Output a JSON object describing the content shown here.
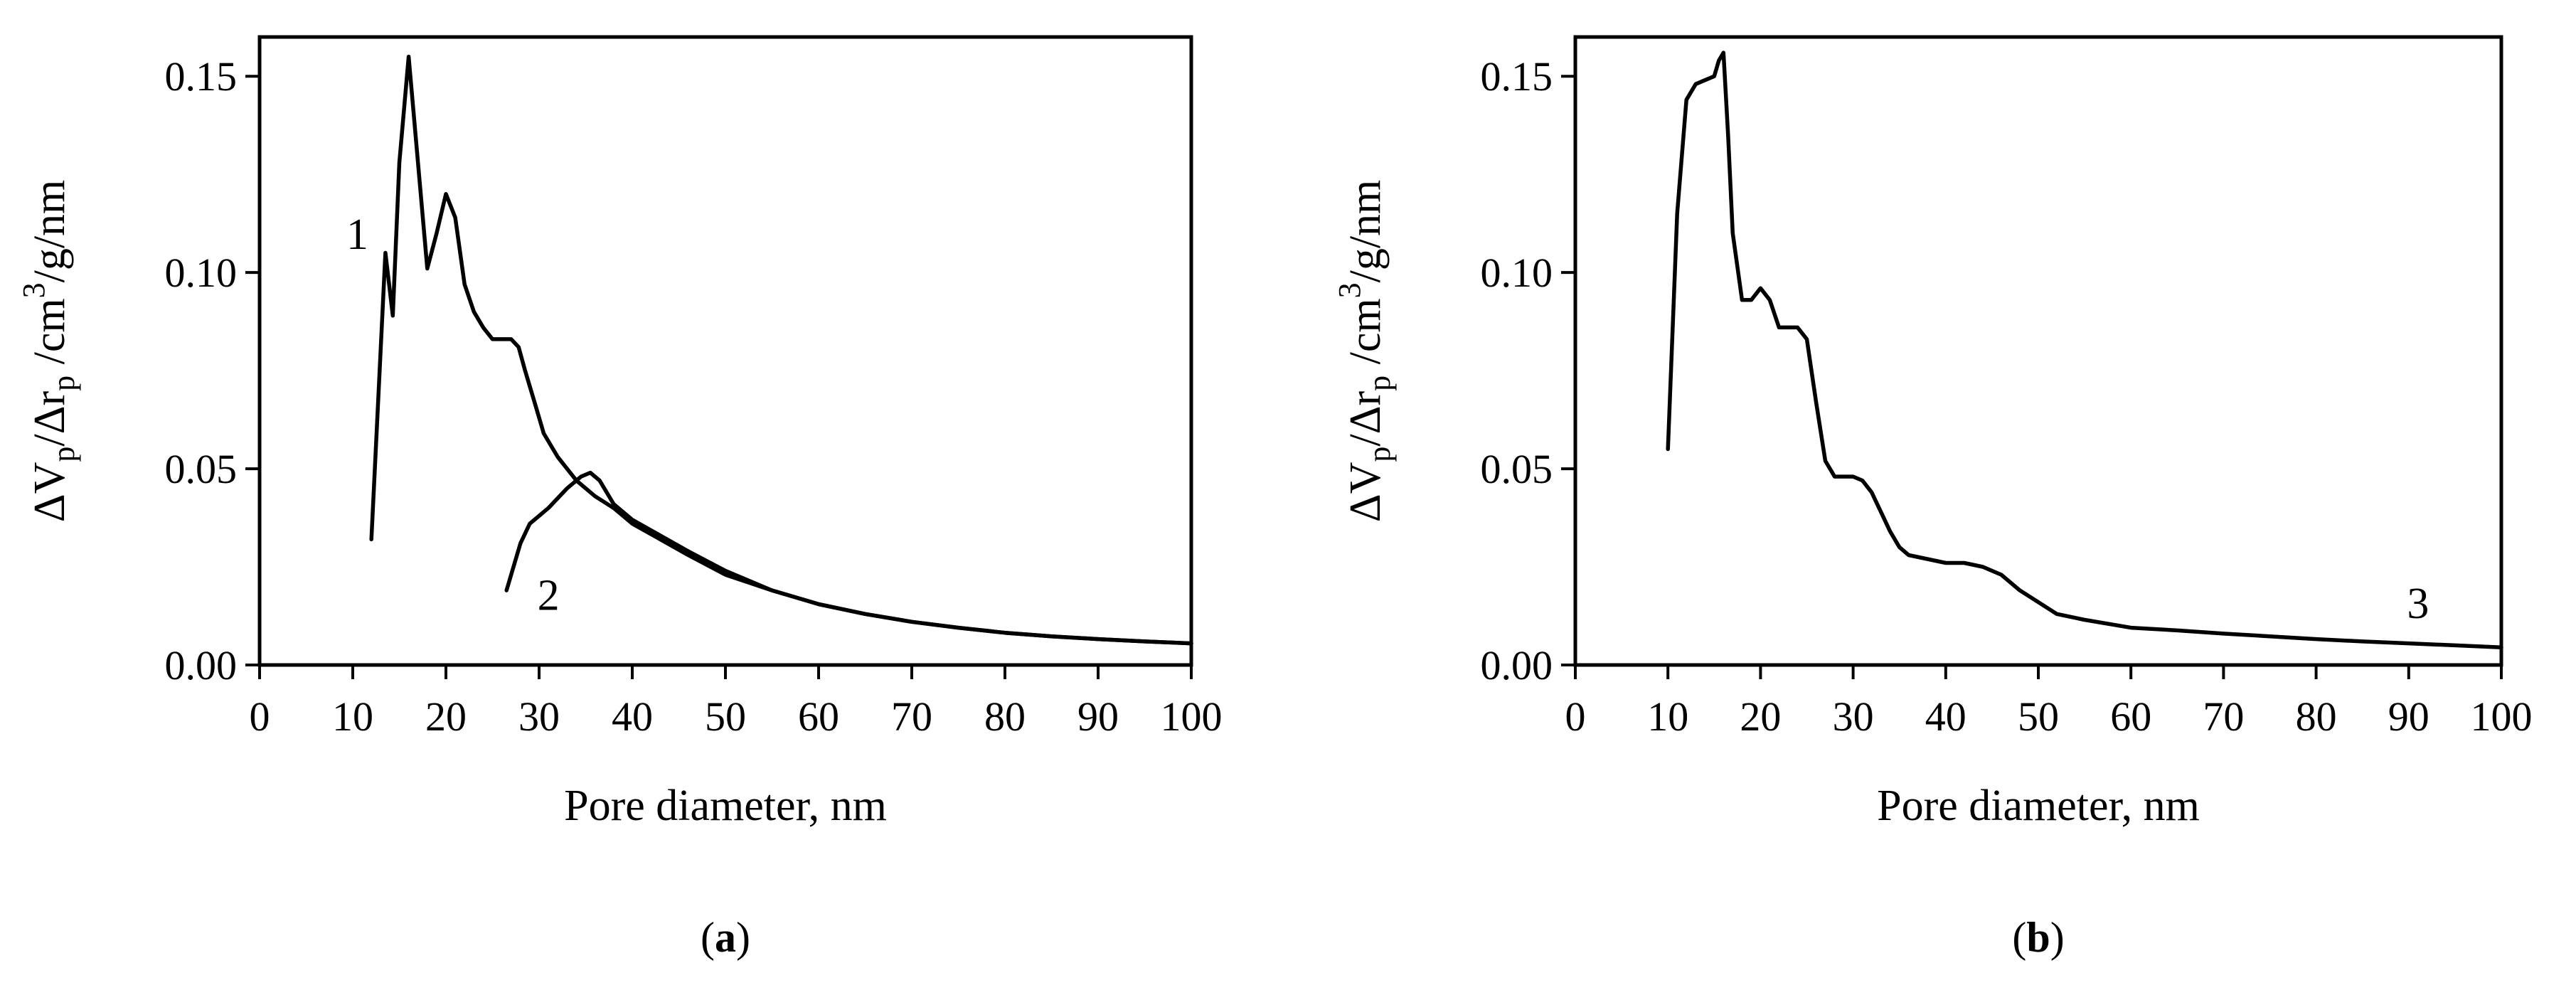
{
  "colors": {
    "line": "#000000",
    "axes": "#000000",
    "background": "#ffffff"
  },
  "chart_data": [
    {
      "type": "line",
      "panel": "(a)",
      "panel_letter": "a",
      "xlabel": "Pore diameter, nm",
      "ylabel": "ΔVp/Δrp /cm3/g/nm",
      "xlim": [
        0,
        100
      ],
      "ylim": [
        0,
        0.16
      ],
      "x_ticks": [
        "0",
        "10",
        "20",
        "30",
        "40",
        "50",
        "60",
        "70",
        "80",
        "90",
        "100"
      ],
      "y_ticks": [
        "0.00",
        "0.05",
        "0.10",
        "0.15"
      ],
      "grid": false,
      "series": [
        {
          "name": "1",
          "x": [
            12.0,
            13.5,
            14.3,
            15.0,
            16.0,
            17.0,
            18.0,
            19.0,
            20.0,
            21.0,
            22.0,
            23.0,
            24.0,
            25.0,
            26.0,
            27.0,
            27.8,
            28.5,
            29.5,
            30.5,
            32.0,
            34.0,
            36.0,
            38.0,
            40.0,
            43.0,
            46.0,
            50.0,
            55.0,
            60.0,
            65.0,
            70.0,
            75.0,
            80.0,
            85.0,
            90.0,
            95.0,
            100.0
          ],
          "y": [
            0.032,
            0.105,
            0.089,
            0.128,
            0.155,
            0.128,
            0.101,
            0.11,
            0.12,
            0.114,
            0.097,
            0.09,
            0.086,
            0.083,
            0.083,
            0.083,
            0.081,
            0.075,
            0.067,
            0.059,
            0.053,
            0.047,
            0.043,
            0.04,
            0.036,
            0.032,
            0.028,
            0.023,
            0.019,
            0.0155,
            0.013,
            0.011,
            0.0095,
            0.0082,
            0.0073,
            0.0066,
            0.006,
            0.0055
          ]
        },
        {
          "name": "2",
          "x": [
            26.5,
            28.0,
            29.0,
            31.0,
            33.0,
            34.5,
            35.5,
            36.5,
            38.0,
            40.0,
            43.0,
            46.0,
            50.0,
            55.0,
            60.0,
            65.0,
            70.0,
            75.0,
            80.0,
            85.0,
            90.0,
            95.0,
            100.0
          ],
          "y": [
            0.019,
            0.031,
            0.036,
            0.04,
            0.045,
            0.048,
            0.049,
            0.047,
            0.041,
            0.037,
            0.033,
            0.029,
            0.024,
            0.019,
            0.0155,
            0.013,
            0.011,
            0.0095,
            0.0082,
            0.0073,
            0.0066,
            0.006,
            0.0055
          ]
        }
      ],
      "annotations": [
        {
          "text": "1",
          "x": 10.5,
          "y": 0.106
        },
        {
          "text": "2",
          "x": 31.0,
          "y": 0.014
        }
      ]
    },
    {
      "type": "line",
      "panel": "(b)",
      "panel_letter": "b",
      "xlabel": "Pore diameter, nm",
      "ylabel": "ΔVp/Δrp /cm3/g/nm",
      "xlim": [
        0,
        100
      ],
      "ylim": [
        0,
        0.16
      ],
      "x_ticks": [
        "0",
        "10",
        "20",
        "30",
        "40",
        "50",
        "60",
        "70",
        "80",
        "90",
        "100"
      ],
      "y_ticks": [
        "0.00",
        "0.05",
        "0.10",
        "0.15"
      ],
      "grid": false,
      "series": [
        {
          "name": "3",
          "x": [
            10.0,
            11.0,
            12.0,
            13.0,
            14.0,
            15.0,
            15.5,
            16.0,
            16.5,
            17.0,
            18.0,
            19.0,
            20.0,
            21.0,
            22.0,
            23.0,
            24.0,
            25.0,
            26.0,
            27.0,
            28.0,
            29.0,
            30.0,
            31.0,
            32.0,
            33.0,
            34.0,
            35.0,
            36.0,
            38.0,
            40.0,
            42.0,
            44.0,
            46.0,
            48.0,
            50.0,
            52.0,
            55.0,
            60.0,
            65.0,
            70.0,
            75.0,
            80.0,
            85.0,
            90.0,
            95.0,
            100.0
          ],
          "y": [
            0.055,
            0.115,
            0.144,
            0.148,
            0.149,
            0.15,
            0.154,
            0.156,
            0.135,
            0.11,
            0.093,
            0.093,
            0.096,
            0.093,
            0.086,
            0.086,
            0.086,
            0.083,
            0.067,
            0.052,
            0.048,
            0.048,
            0.048,
            0.047,
            0.044,
            0.039,
            0.034,
            0.03,
            0.028,
            0.027,
            0.026,
            0.026,
            0.025,
            0.023,
            0.019,
            0.016,
            0.013,
            0.0115,
            0.0095,
            0.0088,
            0.008,
            0.0073,
            0.0066,
            0.006,
            0.0055,
            0.005,
            0.0045
          ]
        }
      ],
      "annotations": [
        {
          "text": "3",
          "x": 91.0,
          "y": 0.012
        }
      ]
    }
  ]
}
